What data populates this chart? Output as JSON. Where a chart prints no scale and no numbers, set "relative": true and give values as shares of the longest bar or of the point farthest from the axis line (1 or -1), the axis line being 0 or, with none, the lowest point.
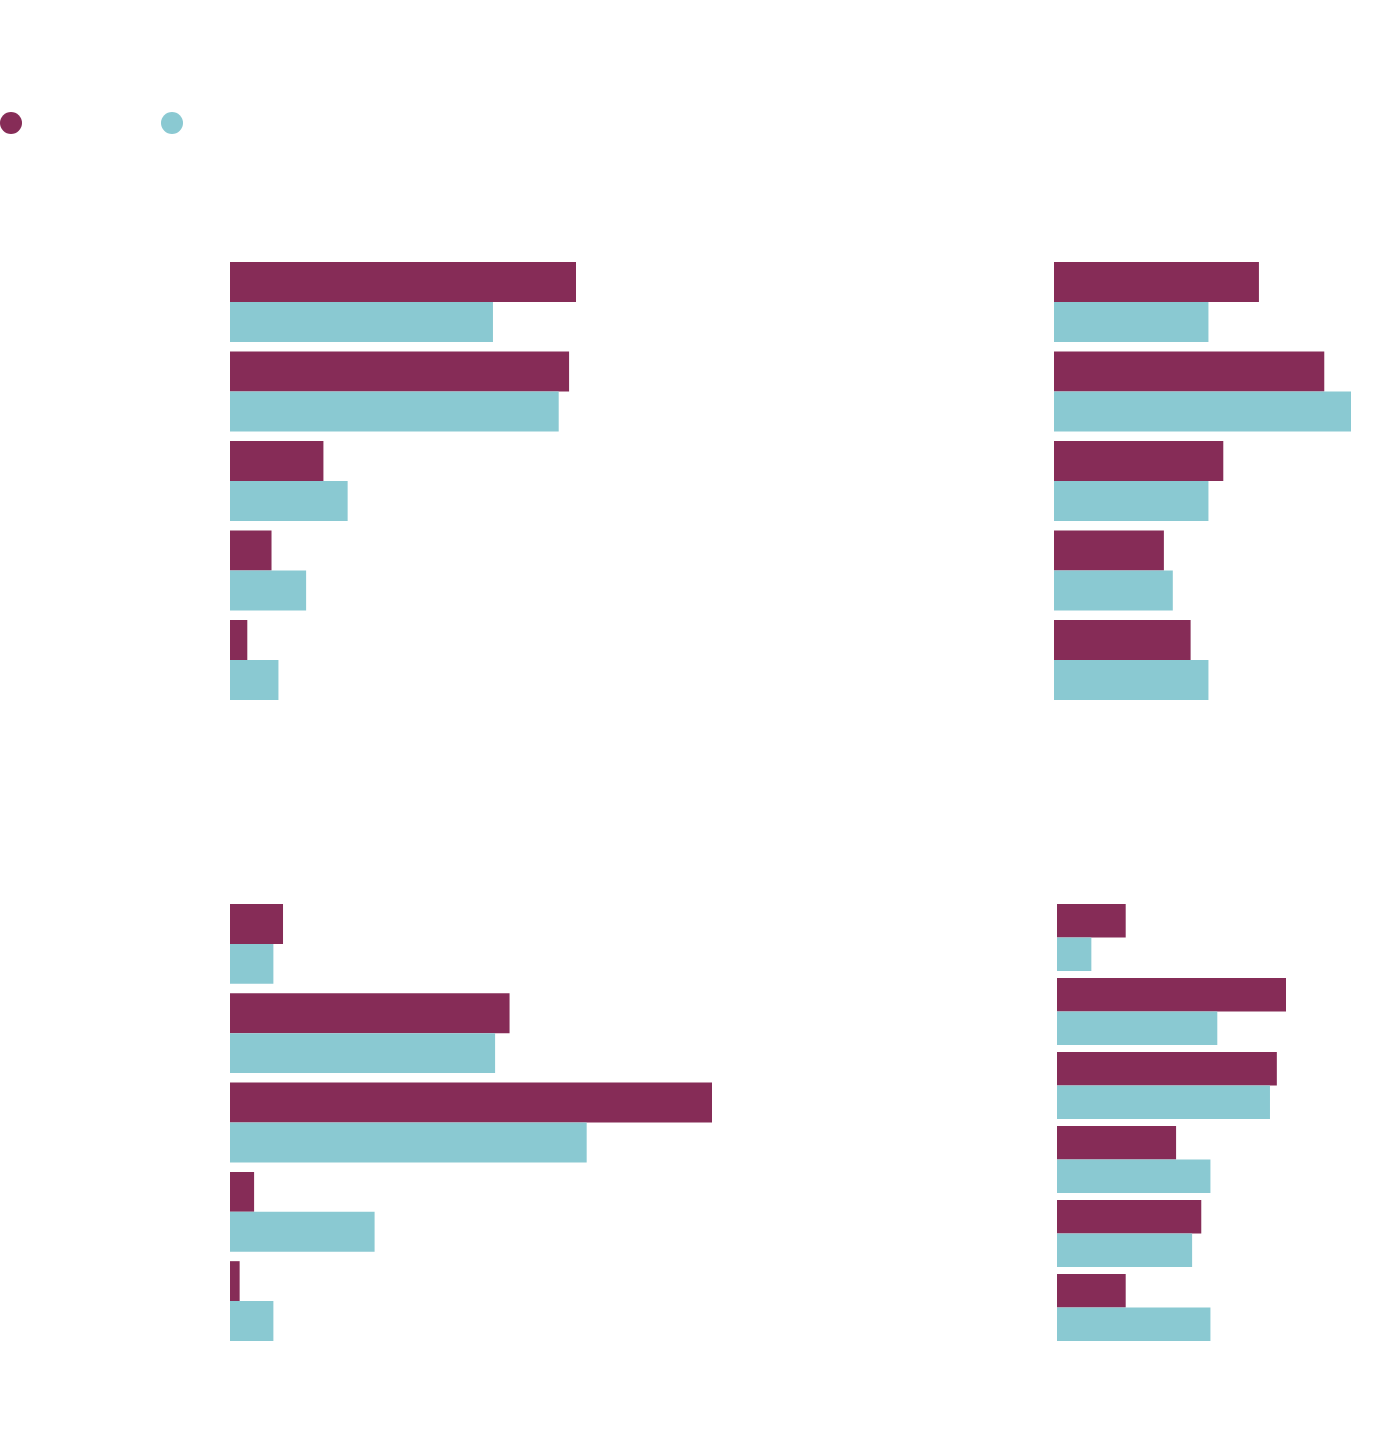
{
  "chart_data": [
    {
      "type": "bar",
      "orientation": "horizontal",
      "relative": true,
      "categories": [
        null,
        null,
        null,
        null,
        null
      ],
      "series": [
        {
          "color": "#862c57",
          "values": [
            1,
            0.98,
            0.27,
            0.12,
            0.05
          ]
        },
        {
          "color": "#8ac9d2",
          "values": [
            0.76,
            0.95,
            0.34,
            0.22,
            0.14
          ]
        }
      ]
    },
    {
      "type": "bar",
      "orientation": "horizontal",
      "relative": true,
      "categories": [
        null,
        null,
        null,
        null,
        null
      ],
      "series": [
        {
          "color": "#862c57",
          "values": [
            0.69,
            0.91,
            0.57,
            0.37,
            0.46
          ]
        },
        {
          "color": "#8ac9d2",
          "values": [
            0.52,
            1,
            0.52,
            0.4,
            0.52
          ]
        }
      ]
    },
    {
      "type": "bar",
      "orientation": "horizontal",
      "relative": true,
      "categories": [
        null,
        null,
        null,
        null,
        null
      ],
      "series": [
        {
          "color": "#862c57",
          "values": [
            0.11,
            0.58,
            1,
            0.05,
            0.02
          ]
        },
        {
          "color": "#8ac9d2",
          "values": [
            0.09,
            0.55,
            0.74,
            0.3,
            0.09
          ]
        }
      ]
    },
    {
      "type": "bar",
      "orientation": "horizontal",
      "relative": true,
      "categories": [
        null,
        null,
        null,
        null,
        null,
        null
      ],
      "series": [
        {
          "color": "#862c57",
          "values": [
            0.3,
            1,
            0.96,
            0.52,
            0.63,
            0.3
          ]
        },
        {
          "color": "#8ac9d2",
          "values": [
            0.15,
            0.7,
            0.93,
            0.67,
            0.59,
            0.67
          ]
        }
      ]
    }
  ]
}
